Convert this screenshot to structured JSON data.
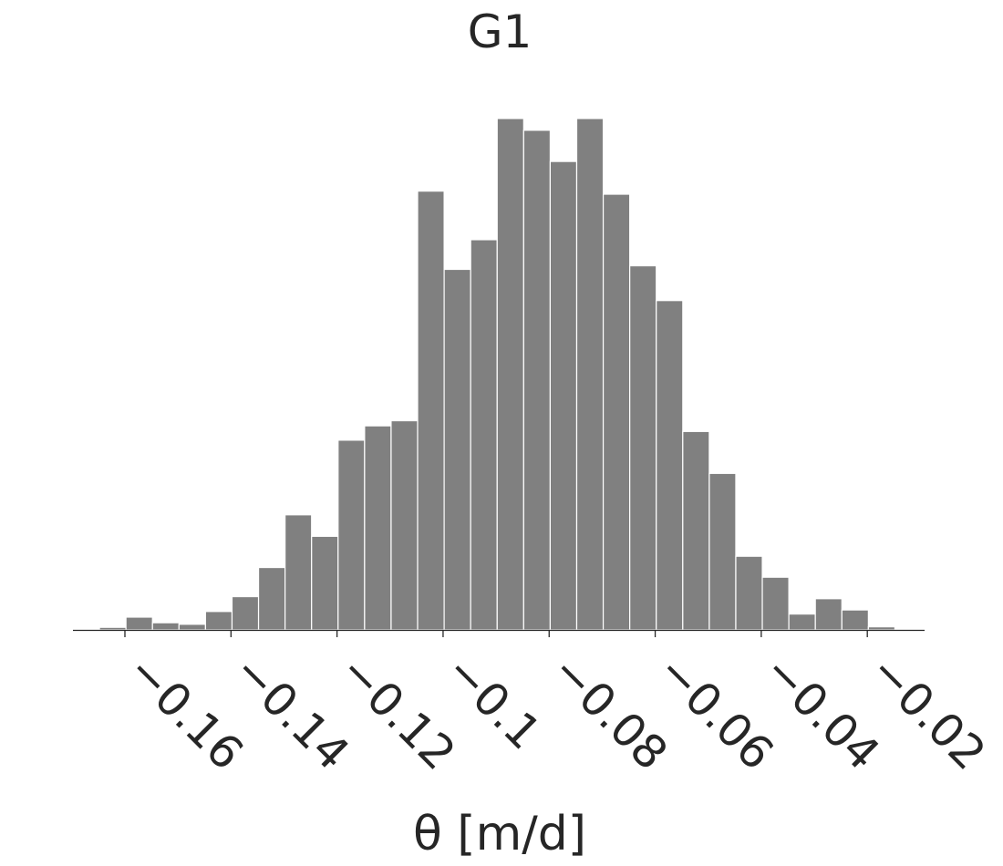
{
  "chart_data": {
    "type": "bar",
    "subtype": "histogram",
    "title": "G1",
    "xlabel": "θ [m/d]",
    "ylabel": "",
    "grid": false,
    "legend": "none",
    "bar_color": "#808080",
    "edge_color": "#ffffff",
    "text_color": "#262626",
    "xlim": [
      -0.1698,
      -0.0092
    ],
    "ylim": [
      0,
      1
    ],
    "x_ticks": [
      -0.16,
      -0.14,
      -0.12,
      -0.1,
      -0.08,
      -0.06,
      -0.04,
      -0.02
    ],
    "x_tick_labels": [
      "−0.16",
      "−0.14",
      "−0.12",
      "−0.1",
      "−0.08",
      "−0.06",
      "−0.04",
      "−0.02"
    ],
    "bins": [
      {
        "start": -0.1698,
        "end": -0.1648,
        "value": 0.0
      },
      {
        "start": -0.1648,
        "end": -0.1598,
        "value": 0.005
      },
      {
        "start": -0.1598,
        "end": -0.1548,
        "value": 0.025
      },
      {
        "start": -0.1548,
        "end": -0.1498,
        "value": 0.014
      },
      {
        "start": -0.1498,
        "end": -0.1448,
        "value": 0.011
      },
      {
        "start": -0.1448,
        "end": -0.1398,
        "value": 0.036
      },
      {
        "start": -0.1398,
        "end": -0.1348,
        "value": 0.065
      },
      {
        "start": -0.1348,
        "end": -0.1298,
        "value": 0.122
      },
      {
        "start": -0.1298,
        "end": -0.1248,
        "value": 0.225
      },
      {
        "start": -0.1248,
        "end": -0.1198,
        "value": 0.183
      },
      {
        "start": -0.1198,
        "end": -0.1148,
        "value": 0.371
      },
      {
        "start": -0.1148,
        "end": -0.1098,
        "value": 0.399
      },
      {
        "start": -0.1098,
        "end": -0.1048,
        "value": 0.409
      },
      {
        "start": -0.1048,
        "end": -0.0998,
        "value": 0.858
      },
      {
        "start": -0.0998,
        "end": -0.0948,
        "value": 0.705
      },
      {
        "start": -0.0948,
        "end": -0.0898,
        "value": 0.763
      },
      {
        "start": -0.0898,
        "end": -0.0848,
        "value": 1.0
      },
      {
        "start": -0.0848,
        "end": -0.0798,
        "value": 0.977
      },
      {
        "start": -0.0798,
        "end": -0.0748,
        "value": 0.916
      },
      {
        "start": -0.0748,
        "end": -0.0698,
        "value": 1.0
      },
      {
        "start": -0.0698,
        "end": -0.0648,
        "value": 0.852
      },
      {
        "start": -0.0648,
        "end": -0.0598,
        "value": 0.712
      },
      {
        "start": -0.0598,
        "end": -0.0548,
        "value": 0.644
      },
      {
        "start": -0.0548,
        "end": -0.0498,
        "value": 0.388
      },
      {
        "start": -0.0498,
        "end": -0.0448,
        "value": 0.306
      },
      {
        "start": -0.0448,
        "end": -0.0398,
        "value": 0.144
      },
      {
        "start": -0.0398,
        "end": -0.0348,
        "value": 0.103
      },
      {
        "start": -0.0348,
        "end": -0.0298,
        "value": 0.031
      },
      {
        "start": -0.0298,
        "end": -0.0248,
        "value": 0.061
      },
      {
        "start": -0.0248,
        "end": -0.0198,
        "value": 0.039
      },
      {
        "start": -0.0198,
        "end": -0.0148,
        "value": 0.006
      }
    ]
  }
}
